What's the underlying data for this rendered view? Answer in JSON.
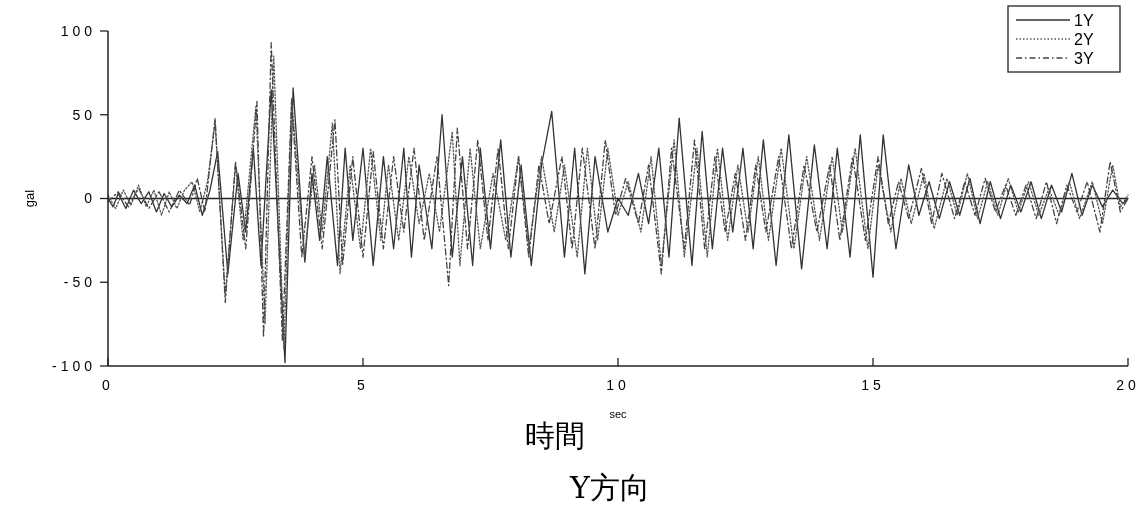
{
  "chart_data": {
    "type": "line",
    "title": "Y方向",
    "xlabel": "時間",
    "ylabel": "gal",
    "annotations": [
      "sec"
    ],
    "xlim": [
      0,
      20
    ],
    "xticks": [
      0,
      5,
      10,
      15,
      20
    ],
    "ylim": [
      -100,
      100
    ],
    "yticks": [
      100,
      50,
      0,
      -50,
      -100
    ],
    "grid": false,
    "legend": "top right",
    "ref_lines": [
      {
        "axis": "y",
        "value": 0,
        "color": "#222222"
      }
    ],
    "series": [
      {
        "name": "1Y",
        "color": "#333333",
        "line_style": "solid",
        "x": [
          0,
          0.1,
          0.2,
          0.35,
          0.5,
          0.65,
          0.8,
          0.95,
          1.1,
          1.25,
          1.4,
          1.55,
          1.7,
          1.85,
          2.0,
          2.15,
          2.35,
          2.55,
          2.7,
          2.85,
          3.0,
          3.2,
          3.47,
          3.63,
          3.86,
          4.0,
          4.15,
          4.3,
          4.5,
          4.65,
          4.8,
          5.0,
          5.2,
          5.4,
          5.6,
          5.8,
          5.95,
          6.1,
          6.35,
          6.55,
          6.75,
          6.95,
          7.15,
          7.3,
          7.5,
          7.7,
          7.9,
          8.1,
          8.3,
          8.5,
          8.7,
          8.95,
          9.15,
          9.35,
          9.55,
          9.8,
          10.0,
          10.2,
          10.4,
          10.6,
          10.8,
          11.0,
          11.2,
          11.45,
          11.65,
          11.85,
          12.05,
          12.25,
          12.45,
          12.65,
          12.85,
          13.1,
          13.35,
          13.6,
          13.85,
          14.1,
          14.3,
          14.55,
          14.75,
          15.0,
          15.2,
          15.45,
          15.7,
          15.9,
          16.1,
          16.3,
          16.5,
          16.7,
          16.9,
          17.1,
          17.3,
          17.5,
          17.7,
          17.9,
          18.1,
          18.3,
          18.5,
          18.7,
          18.9,
          19.1,
          19.3,
          19.5,
          19.7,
          19.9,
          20
        ],
        "values": [
          0,
          -5,
          3,
          -6,
          5,
          -3,
          4,
          -8,
          3,
          -5,
          2,
          -3,
          8,
          -10,
          5,
          28,
          -45,
          15,
          -20,
          30,
          -40,
          65,
          -98,
          66,
          -38,
          15,
          -25,
          25,
          -40,
          30,
          -25,
          30,
          -40,
          25,
          -30,
          30,
          -35,
          20,
          -30,
          50,
          -35,
          25,
          -40,
          30,
          -30,
          35,
          -35,
          20,
          -40,
          20,
          52,
          -35,
          30,
          -45,
          25,
          -20,
          0,
          -10,
          15,
          -15,
          30,
          -35,
          48,
          -40,
          40,
          -30,
          30,
          -20,
          30,
          -30,
          35,
          -40,
          38,
          -42,
          32,
          -30,
          30,
          -35,
          38,
          -47,
          38,
          -30,
          20,
          -10,
          10,
          -12,
          10,
          -10,
          12,
          -15,
          10,
          -12,
          8,
          -8,
          10,
          -12,
          8,
          -8,
          15,
          -10,
          8,
          -5,
          5,
          -3,
          0
        ]
      },
      {
        "name": "2Y",
        "color": "#555555",
        "line_style": "dotted",
        "x": [
          0,
          0.15,
          0.3,
          0.45,
          0.6,
          0.75,
          0.9,
          1.05,
          1.2,
          1.35,
          1.5,
          1.65,
          1.8,
          1.95,
          2.1,
          2.3,
          2.5,
          2.65,
          2.9,
          3.08,
          3.25,
          3.45,
          3.6,
          3.85,
          4.05,
          4.2,
          4.4,
          4.55,
          4.75,
          4.95,
          5.15,
          5.35,
          5.5,
          5.7,
          5.9,
          6.1,
          6.3,
          6.5,
          6.75,
          6.9,
          7.1,
          7.3,
          7.55,
          7.8,
          8.05,
          8.25,
          8.5,
          8.75,
          8.95,
          9.2,
          9.4,
          9.6,
          9.8,
          10.0,
          10.2,
          10.45,
          10.65,
          10.85,
          11.1,
          11.3,
          11.55,
          11.75,
          11.95,
          12.15,
          12.35,
          12.55,
          12.75,
          12.95,
          13.2,
          13.45,
          13.7,
          13.95,
          14.2,
          14.4,
          14.65,
          14.9,
          15.1,
          15.35,
          15.55,
          15.75,
          16.0,
          16.2,
          16.45,
          16.65,
          16.85,
          17.05,
          17.25,
          17.45,
          17.65,
          17.85,
          18.05,
          18.25,
          18.45,
          18.65,
          18.85,
          19.05,
          19.3,
          19.5,
          19.7,
          19.85,
          20
        ],
        "values": [
          2,
          -6,
          5,
          -4,
          8,
          -5,
          5,
          -10,
          4,
          -6,
          5,
          10,
          -8,
          10,
          45,
          -58,
          20,
          -25,
          55,
          -75,
          85,
          -90,
          60,
          -35,
          20,
          -20,
          45,
          -45,
          20,
          -30,
          30,
          -25,
          20,
          -25,
          25,
          -15,
          15,
          -20,
          40,
          -40,
          30,
          -30,
          15,
          -25,
          25,
          -30,
          25,
          -20,
          20,
          -35,
          30,
          -25,
          30,
          -10,
          10,
          -20,
          25,
          -40,
          35,
          -35,
          30,
          -35,
          30,
          -25,
          20,
          -20,
          25,
          -25,
          30,
          -30,
          25,
          -25,
          25,
          -20,
          30,
          -30,
          20,
          -20,
          12,
          -15,
          15,
          -18,
          12,
          -10,
          15,
          -12,
          10,
          -10,
          12,
          -8,
          10,
          -10,
          6,
          -10,
          10,
          -12,
          10,
          -15,
          20,
          -5,
          2
        ]
      },
      {
        "name": "3Y",
        "color": "#444444",
        "line_style": "dashed",
        "x": [
          0,
          0.2,
          0.4,
          0.6,
          0.8,
          1.0,
          1.2,
          1.4,
          1.6,
          1.75,
          1.9,
          2.1,
          2.3,
          2.5,
          2.7,
          2.92,
          3.05,
          3.2,
          3.42,
          3.6,
          3.8,
          4.0,
          4.2,
          4.45,
          4.6,
          4.8,
          5.0,
          5.2,
          5.4,
          5.6,
          5.8,
          6.0,
          6.2,
          6.45,
          6.68,
          6.85,
          7.05,
          7.25,
          7.45,
          7.65,
          7.85,
          8.05,
          8.25,
          8.45,
          8.65,
          8.9,
          9.1,
          9.3,
          9.55,
          9.75,
          9.95,
          10.15,
          10.4,
          10.6,
          10.85,
          11.05,
          11.3,
          11.5,
          11.7,
          11.9,
          12.1,
          12.3,
          12.5,
          12.7,
          12.9,
          13.15,
          13.4,
          13.65,
          13.9,
          14.15,
          14.35,
          14.6,
          14.85,
          15.1,
          15.3,
          15.5,
          15.7,
          15.95,
          16.15,
          16.35,
          16.6,
          16.8,
          17.0,
          17.2,
          17.4,
          17.6,
          17.8,
          18.0,
          18.2,
          18.4,
          18.6,
          18.8,
          19.0,
          19.2,
          19.45,
          19.65,
          19.85,
          20
        ],
        "values": [
          -2,
          4,
          -5,
          6,
          -6,
          4,
          -8,
          5,
          -4,
          12,
          -8,
          48,
          -62,
          22,
          -30,
          58,
          -83,
          93,
          -85,
          58,
          -35,
          25,
          -30,
          47,
          -40,
          25,
          -35,
          28,
          -30,
          25,
          -20,
          30,
          -25,
          25,
          -52,
          42,
          -30,
          35,
          -25,
          30,
          -30,
          25,
          -35,
          20,
          -15,
          25,
          -30,
          30,
          -30,
          35,
          -10,
          12,
          -15,
          20,
          -45,
          30,
          -30,
          35,
          -30,
          25,
          -20,
          15,
          -25,
          20,
          -20,
          25,
          -30,
          20,
          -20,
          20,
          -25,
          25,
          -25,
          25,
          -15,
          10,
          -12,
          18,
          -15,
          15,
          -12,
          10,
          -10,
          12,
          -8,
          8,
          -10,
          8,
          -12,
          10,
          -15,
          8,
          -8,
          10,
          -20,
          22,
          -8,
          0
        ]
      }
    ]
  }
}
